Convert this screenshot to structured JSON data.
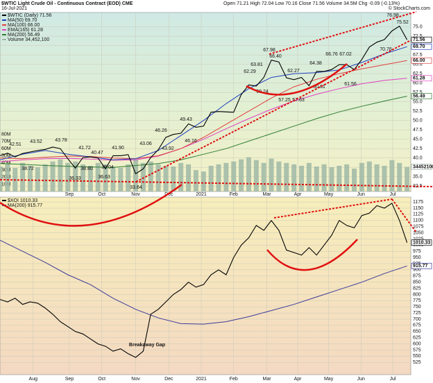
{
  "chart_data": [
    {
      "type": "line",
      "title": "$WTIC Light Crude Oil - Continuous Contract (EOD) CME",
      "subtitle": "16-Jul-2021",
      "info": "Open 71.21 High 72.04 Low 70.16 Close 71.56 Volume 34.5M Chg -0.09 (-0.13%)",
      "source": "© StockCharts.com",
      "grid": true,
      "xlim": [
        0,
        54.5
      ],
      "xticks": [
        {
          "value": 9.2,
          "label": "Sep"
        },
        {
          "value": 13.5,
          "label": "Oct"
        },
        {
          "value": 18.0,
          "label": "Nov"
        },
        {
          "value": 22.4,
          "label": "Dec"
        },
        {
          "value": 26.7,
          "label": "2021"
        },
        {
          "value": 31.0,
          "label": "Feb"
        },
        {
          "value": 35.4,
          "label": "Mar"
        },
        {
          "value": 39.5,
          "label": "Apr"
        },
        {
          "value": 43.6,
          "label": "May"
        },
        {
          "value": 47.9,
          "label": "Jun"
        },
        {
          "value": 52.1,
          "label": "Jul"
        }
      ],
      "ylim": [
        31.05,
        78.83
      ],
      "yticks": [
        32.5,
        {
          "value": 35,
          "label": "35.0"
        },
        37.5,
        {
          "value": 40,
          "label": "40.0"
        },
        42.5,
        {
          "value": 45,
          "label": "45.0"
        },
        47.5,
        {
          "value": 50,
          "label": "50.0"
        },
        52.5,
        {
          "value": 55,
          "label": "55.0"
        },
        57.5,
        {
          "value": 60,
          "label": "60.0"
        },
        62.5,
        {
          "value": 65,
          "label": "65.0"
        },
        67.5,
        {
          "value": 70,
          "label": "70.0"
        },
        72.5,
        {
          "value": 75,
          "label": "75.0"
        }
      ],
      "y2lim": [
        0,
        250.5
      ],
      "y2ticks": [
        {
          "value": 10,
          "label": "10M"
        },
        {
          "value": 20,
          "label": "20M"
        },
        {
          "value": 30,
          "label": "30M"
        },
        {
          "value": 40,
          "label": "40M"
        },
        {
          "value": 50,
          "label": "50M"
        },
        {
          "value": 60,
          "label": "60M"
        },
        {
          "value": 70,
          "label": "70M"
        },
        {
          "value": 80,
          "label": "80M"
        }
      ],
      "x": [
        0,
        1,
        2,
        3,
        4,
        5,
        6,
        7,
        8,
        9,
        10,
        11,
        12,
        13,
        14,
        15,
        16,
        17,
        18,
        19,
        20,
        21,
        22,
        23,
        24,
        25,
        26,
        27,
        28,
        29,
        30,
        31,
        32,
        33,
        34,
        35,
        36,
        37,
        38,
        39,
        40,
        41,
        42,
        43,
        44,
        45,
        46,
        47,
        48,
        49,
        50,
        51,
        52,
        53,
        54
      ],
      "series": [
        {
          "name": "Volume 34,452,100",
          "color": "#9fb8a6",
          "axis": "y2",
          "last_label": "34452100",
          "values": [
            35,
            38,
            33,
            40,
            36,
            34,
            38,
            42,
            45,
            40,
            42,
            38,
            36,
            40,
            38,
            35,
            33,
            38,
            45,
            40,
            42,
            38,
            36,
            35,
            40,
            38,
            30,
            28,
            36,
            38,
            40,
            42,
            45,
            48,
            44,
            40,
            46,
            42,
            40,
            38,
            36,
            40,
            35,
            38,
            34,
            36,
            38,
            32,
            40,
            42,
            38,
            36,
            44,
            40,
            34.4521
          ]
        },
        {
          "name": "MA(200) 56.49",
          "color": "#2e7d32",
          "last_label": "56.49",
          "x": [
            0,
            3,
            6,
            9,
            12,
            15,
            18,
            21,
            24,
            27,
            30,
            33,
            36,
            39,
            42,
            45,
            48,
            51,
            54
          ],
          "values": [
            38.5,
            38.3,
            38.0,
            37.8,
            37.6,
            37.5,
            38.0,
            38.5,
            39.5,
            41.0,
            42.5,
            44.5,
            46.5,
            48.5,
            50.5,
            52.3,
            53.8,
            55.2,
            56.49
          ]
        },
        {
          "name": "EMA(165) 61.28",
          "color": "#e040c0",
          "last_label": "61.28",
          "x": [
            0,
            3,
            6,
            9,
            12,
            15,
            18,
            21,
            24,
            27,
            30,
            33,
            36,
            39,
            42,
            45,
            48,
            51,
            54
          ],
          "values": [
            39.0,
            39.5,
            39.8,
            39.9,
            39.7,
            39.4,
            39.5,
            40.5,
            42.5,
            45.0,
            47.8,
            50.5,
            53.0,
            55.2,
            57.0,
            58.5,
            59.8,
            60.7,
            61.28
          ]
        },
        {
          "name": "MA(100) 66.00",
          "color": "#e04040",
          "last_label": "66.00",
          "x": [
            0,
            3,
            6,
            9,
            12,
            15,
            18,
            21,
            24,
            27,
            30,
            33,
            36,
            39,
            42,
            45,
            48,
            51,
            54
          ],
          "values": [
            40.0,
            39.8,
            40.2,
            40.5,
            40.4,
            40.0,
            39.8,
            40.6,
            42.5,
            45.5,
            49.0,
            52.5,
            56.0,
            59.0,
            61.0,
            62.5,
            63.8,
            64.9,
            66.0
          ]
        },
        {
          "name": "MA(50) 69.70",
          "color": "#1f3fbf",
          "last_label": "69.70",
          "x": [
            0,
            3,
            6,
            9,
            12,
            15,
            18,
            21,
            24,
            27,
            30,
            33,
            36,
            39,
            42,
            45,
            48,
            51,
            54
          ],
          "values": [
            39.5,
            41.0,
            42.0,
            41.0,
            40.3,
            39.5,
            39.8,
            42.0,
            46.0,
            50.0,
            54.5,
            58.5,
            61.5,
            62.5,
            62.8,
            63.5,
            65.5,
            67.8,
            69.7
          ]
        },
        {
          "name": "$WTIC (Daily) 71.56",
          "color": "#000000",
          "last_label": "71.56",
          "values": [
            40.6,
            41.3,
            40.3,
            41.2,
            41.6,
            42.0,
            42.3,
            42.9,
            42.5,
            39.8,
            37.3,
            40.1,
            40.3,
            40.0,
            37.1,
            40.6,
            40.6,
            40.9,
            35.8,
            37.1,
            40.1,
            42.2,
            45.5,
            46.3,
            46.6,
            49.1,
            48.2,
            48.5,
            52.2,
            52.4,
            52.3,
            52.2,
            56.9,
            59.5,
            59.2,
            61.5,
            66.1,
            65.6,
            61.4,
            60.9,
            61.5,
            59.3,
            63.1,
            63.1,
            63.6,
            64.9,
            64.9,
            63.6,
            66.3,
            69.6,
            70.9,
            71.6,
            73.9,
            75.2,
            71.56
          ]
        }
      ],
      "annotations": [
        "42.51",
        "43.52",
        "43.78",
        "38.72",
        "41.72",
        "40.47",
        "41.90",
        "36.33",
        "38.80",
        "36.63",
        "39.04",
        "43.06",
        "33.64",
        "46.26",
        "43.92",
        "49.43",
        "46.16",
        "62.29",
        "63.81",
        "67.98",
        "66.40",
        "59.24",
        "62.27",
        "57.25",
        "57.63",
        "64.38",
        "60.61",
        "66.76",
        "67.02",
        "61.56",
        "76.98",
        "75.52",
        "70.76"
      ]
    },
    {
      "type": "line",
      "grid": true,
      "xlim": [
        0,
        54.5
      ],
      "xticks": [
        {
          "value": 4.4,
          "label": "Aug"
        },
        {
          "value": 9.2,
          "label": "Sep"
        },
        {
          "value": 13.5,
          "label": "Oct"
        },
        {
          "value": 18.0,
          "label": "Nov"
        },
        {
          "value": 22.4,
          "label": "Dec"
        },
        {
          "value": 26.7,
          "label": "2021"
        },
        {
          "value": 31.0,
          "label": "Feb"
        },
        {
          "value": 35.4,
          "label": "Mar"
        },
        {
          "value": 39.5,
          "label": "Apr"
        },
        {
          "value": 43.6,
          "label": "May"
        },
        {
          "value": 47.9,
          "label": "Jun"
        },
        {
          "value": 52.1,
          "label": "Jul"
        }
      ],
      "ylim": [
        475,
        1195
      ],
      "yticks": [
        525,
        550,
        575,
        600,
        625,
        650,
        675,
        700,
        725,
        750,
        775,
        800,
        825,
        850,
        875,
        900,
        925,
        950,
        975,
        1000,
        1025,
        1050,
        1075,
        1100,
        1125,
        1150,
        1175
      ],
      "x": [
        0,
        1,
        2,
        3,
        4,
        5,
        6,
        7,
        8,
        9,
        10,
        11,
        12,
        13,
        14,
        15,
        16,
        17,
        18,
        19,
        20,
        21,
        22,
        23,
        24,
        25,
        26,
        27,
        28,
        29,
        30,
        31,
        32,
        33,
        34,
        35,
        36,
        37,
        38,
        39,
        40,
        41,
        42,
        43,
        44,
        45,
        46,
        47,
        48,
        49,
        50,
        51,
        52,
        53,
        54
      ],
      "series": [
        {
          "name": "MA(200) 915.77",
          "color": "#3a3a9a",
          "last_label": "915.77",
          "x": [
            0,
            3,
            6,
            9,
            12,
            15,
            18,
            21,
            24,
            27,
            30,
            33,
            36,
            39,
            42,
            45,
            48,
            51,
            54
          ],
          "values": [
            1020,
            975,
            930,
            880,
            840,
            785,
            740,
            705,
            682,
            680,
            690,
            710,
            735,
            760,
            790,
            820,
            850,
            885,
            915.77
          ]
        },
        {
          "name": "$XOI 1010.33",
          "color": "#000000",
          "last_label": "1010.33",
          "values": [
            780,
            770,
            785,
            760,
            770,
            765,
            745,
            720,
            690,
            670,
            650,
            640,
            620,
            600,
            590,
            570,
            580,
            560,
            545,
            570,
            720,
            740,
            770,
            800,
            820,
            850,
            830,
            840,
            880,
            900,
            880,
            950,
            1000,
            1030,
            1080,
            1060,
            1100,
            1060,
            980,
            970,
            960,
            990,
            960,
            1000,
            1040,
            1100,
            1080,
            1070,
            1120,
            1130,
            1160,
            1150,
            1170,
            1100,
            1010.33
          ]
        }
      ],
      "annotations": [
        "Breakaway Gap"
      ]
    }
  ]
}
